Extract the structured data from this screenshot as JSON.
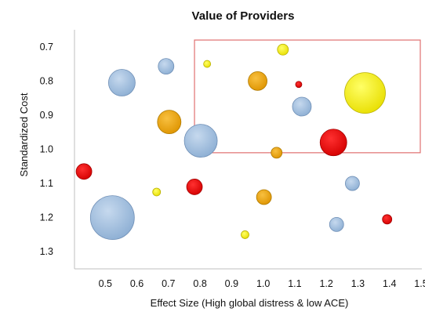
{
  "chart_data": {
    "type": "scatter",
    "subtype": "bubble",
    "title": "Value of Providers",
    "xlabel": "Effect Size (High global distress & low ACE)",
    "ylabel": "Standardized Cost",
    "xlim": [
      0.4,
      1.5
    ],
    "ylim": [
      0.65,
      1.35
    ],
    "y_reversed": true,
    "x_ticks": [
      "0.5",
      "0.6",
      "0.7",
      "0.8",
      "0.9",
      "1.0",
      "1.1",
      "1.2",
      "1.3",
      "1.4",
      "1.5"
    ],
    "y_ticks": [
      "0.7",
      "0.8",
      "0.9",
      "1.0",
      "1.1",
      "1.2",
      "1.3"
    ],
    "grid": false,
    "highlight_box": {
      "x": [
        0.78,
        1.5
      ],
      "y": [
        0.68,
        1.01
      ],
      "color": "#e07070"
    },
    "color_key": {
      "blue": "#9bbadb",
      "yellow": "#f5ee00",
      "orange": "#e9a30c",
      "red": "#e80000"
    },
    "points": [
      {
        "x": 0.55,
        "y": 0.805,
        "size": 17,
        "color": "blue"
      },
      {
        "x": 0.69,
        "y": 0.757,
        "size": 10,
        "color": "blue"
      },
      {
        "x": 0.82,
        "y": 0.75,
        "size": 4.5,
        "color": "yellow"
      },
      {
        "x": 1.06,
        "y": 0.708,
        "size": 7,
        "color": "yellow"
      },
      {
        "x": 0.98,
        "y": 0.8,
        "size": 12,
        "color": "orange"
      },
      {
        "x": 1.11,
        "y": 0.81,
        "size": 4,
        "color": "red"
      },
      {
        "x": 1.32,
        "y": 0.835,
        "size": 26,
        "color": "yellow"
      },
      {
        "x": 1.12,
        "y": 0.875,
        "size": 12,
        "color": "blue"
      },
      {
        "x": 0.7,
        "y": 0.92,
        "size": 15,
        "color": "orange"
      },
      {
        "x": 0.8,
        "y": 0.975,
        "size": 21,
        "color": "blue"
      },
      {
        "x": 1.22,
        "y": 0.98,
        "size": 17,
        "color": "red"
      },
      {
        "x": 1.04,
        "y": 1.01,
        "size": 7,
        "color": "orange"
      },
      {
        "x": 0.43,
        "y": 1.065,
        "size": 10,
        "color": "red"
      },
      {
        "x": 0.78,
        "y": 1.11,
        "size": 10,
        "color": "red"
      },
      {
        "x": 0.66,
        "y": 1.125,
        "size": 5,
        "color": "yellow"
      },
      {
        "x": 1.0,
        "y": 1.14,
        "size": 9.5,
        "color": "orange"
      },
      {
        "x": 1.28,
        "y": 1.1,
        "size": 9,
        "color": "blue"
      },
      {
        "x": 0.52,
        "y": 1.2,
        "size": 28,
        "color": "blue"
      },
      {
        "x": 1.23,
        "y": 1.22,
        "size": 9,
        "color": "blue"
      },
      {
        "x": 1.39,
        "y": 1.205,
        "size": 6,
        "color": "red"
      },
      {
        "x": 0.94,
        "y": 1.25,
        "size": 5,
        "color": "yellow"
      }
    ]
  }
}
